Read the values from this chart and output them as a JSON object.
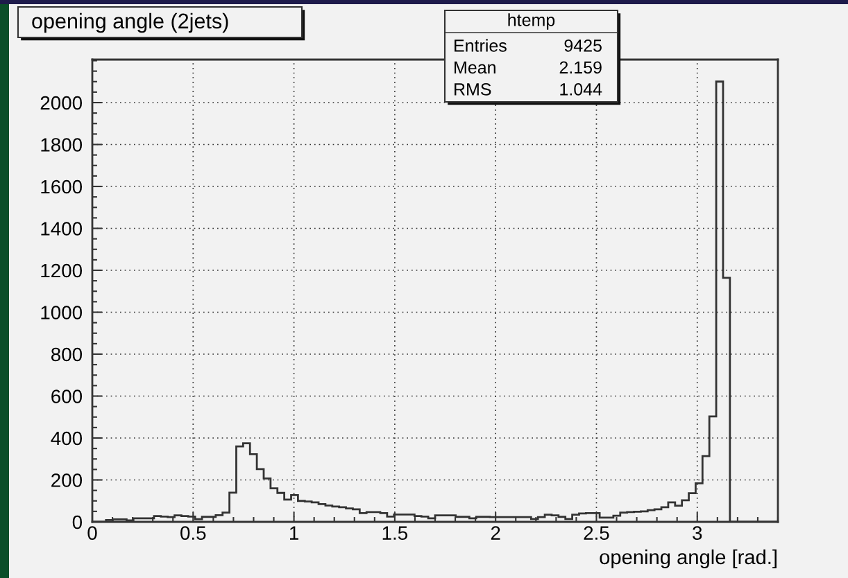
{
  "chart_data": {
    "type": "histogram",
    "title": "opening angle (2jets)",
    "xlabel": "opening angle [rad.]",
    "annotations": [
      "htemp",
      "Entries",
      "9425",
      "Mean",
      "2.159",
      "RMS",
      "1.044"
    ],
    "bins": [
      0,
      0.034,
      0.068,
      0.102,
      0.136,
      0.17,
      0.204,
      0.238,
      0.272,
      0.306,
      0.34,
      0.374,
      0.408,
      0.442,
      0.476,
      0.51,
      0.544,
      0.578,
      0.612,
      0.646,
      0.68,
      0.714,
      0.748,
      0.782,
      0.816,
      0.85,
      0.884,
      0.918,
      0.952,
      0.986,
      1.02,
      1.054,
      1.088,
      1.122,
      1.156,
      1.19,
      1.224,
      1.258,
      1.292,
      1.326,
      1.36,
      1.394,
      1.428,
      1.462,
      1.496,
      1.53,
      1.564,
      1.598,
      1.632,
      1.666,
      1.7,
      1.734,
      1.768,
      1.802,
      1.836,
      1.87,
      1.904,
      1.938,
      1.972,
      2.006,
      2.04,
      2.074,
      2.108,
      2.142,
      2.176,
      2.21,
      2.244,
      2.278,
      2.312,
      2.346,
      2.38,
      2.414,
      2.448,
      2.482,
      2.516,
      2.55,
      2.584,
      2.618,
      2.652,
      2.686,
      2.72,
      2.754,
      2.788,
      2.822,
      2.856,
      2.89,
      2.924,
      2.958,
      2.992,
      3.026,
      3.06,
      3.094,
      3.128,
      3.162,
      3.196,
      3.23,
      3.264,
      3.298,
      3.332,
      3.366,
      3.4
    ],
    "values": [
      0,
      0,
      9,
      12,
      12,
      7,
      17,
      17,
      17,
      28,
      25,
      23,
      31,
      28,
      25,
      13,
      24,
      24,
      32,
      44,
      139,
      360,
      375,
      323,
      252,
      207,
      160,
      138,
      106,
      128,
      100,
      97,
      93,
      85,
      78,
      73,
      70,
      64,
      60,
      42,
      47,
      47,
      42,
      25,
      35,
      35,
      35,
      28,
      25,
      17,
      31,
      31,
      31,
      24,
      24,
      17,
      24,
      24,
      23,
      23,
      23,
      23,
      23,
      23,
      14,
      23,
      34,
      31,
      24,
      14,
      34,
      40,
      42,
      42,
      20,
      20,
      29,
      44,
      47,
      48,
      50,
      56,
      60,
      70,
      93,
      77,
      103,
      137,
      184,
      314,
      503,
      2100,
      1164,
      0,
      0,
      0,
      0,
      0,
      0,
      0
    ],
    "color": "#333333",
    "xlim": [
      0,
      3.4
    ],
    "ylim": [
      0,
      2205
    ],
    "xticks": [
      0,
      0.5,
      1,
      1.5,
      2,
      2.5,
      3
    ],
    "yticks": [
      0,
      200,
      400,
      600,
      800,
      1000,
      1200,
      1400,
      1600,
      1800,
      2000
    ],
    "grid": true
  }
}
